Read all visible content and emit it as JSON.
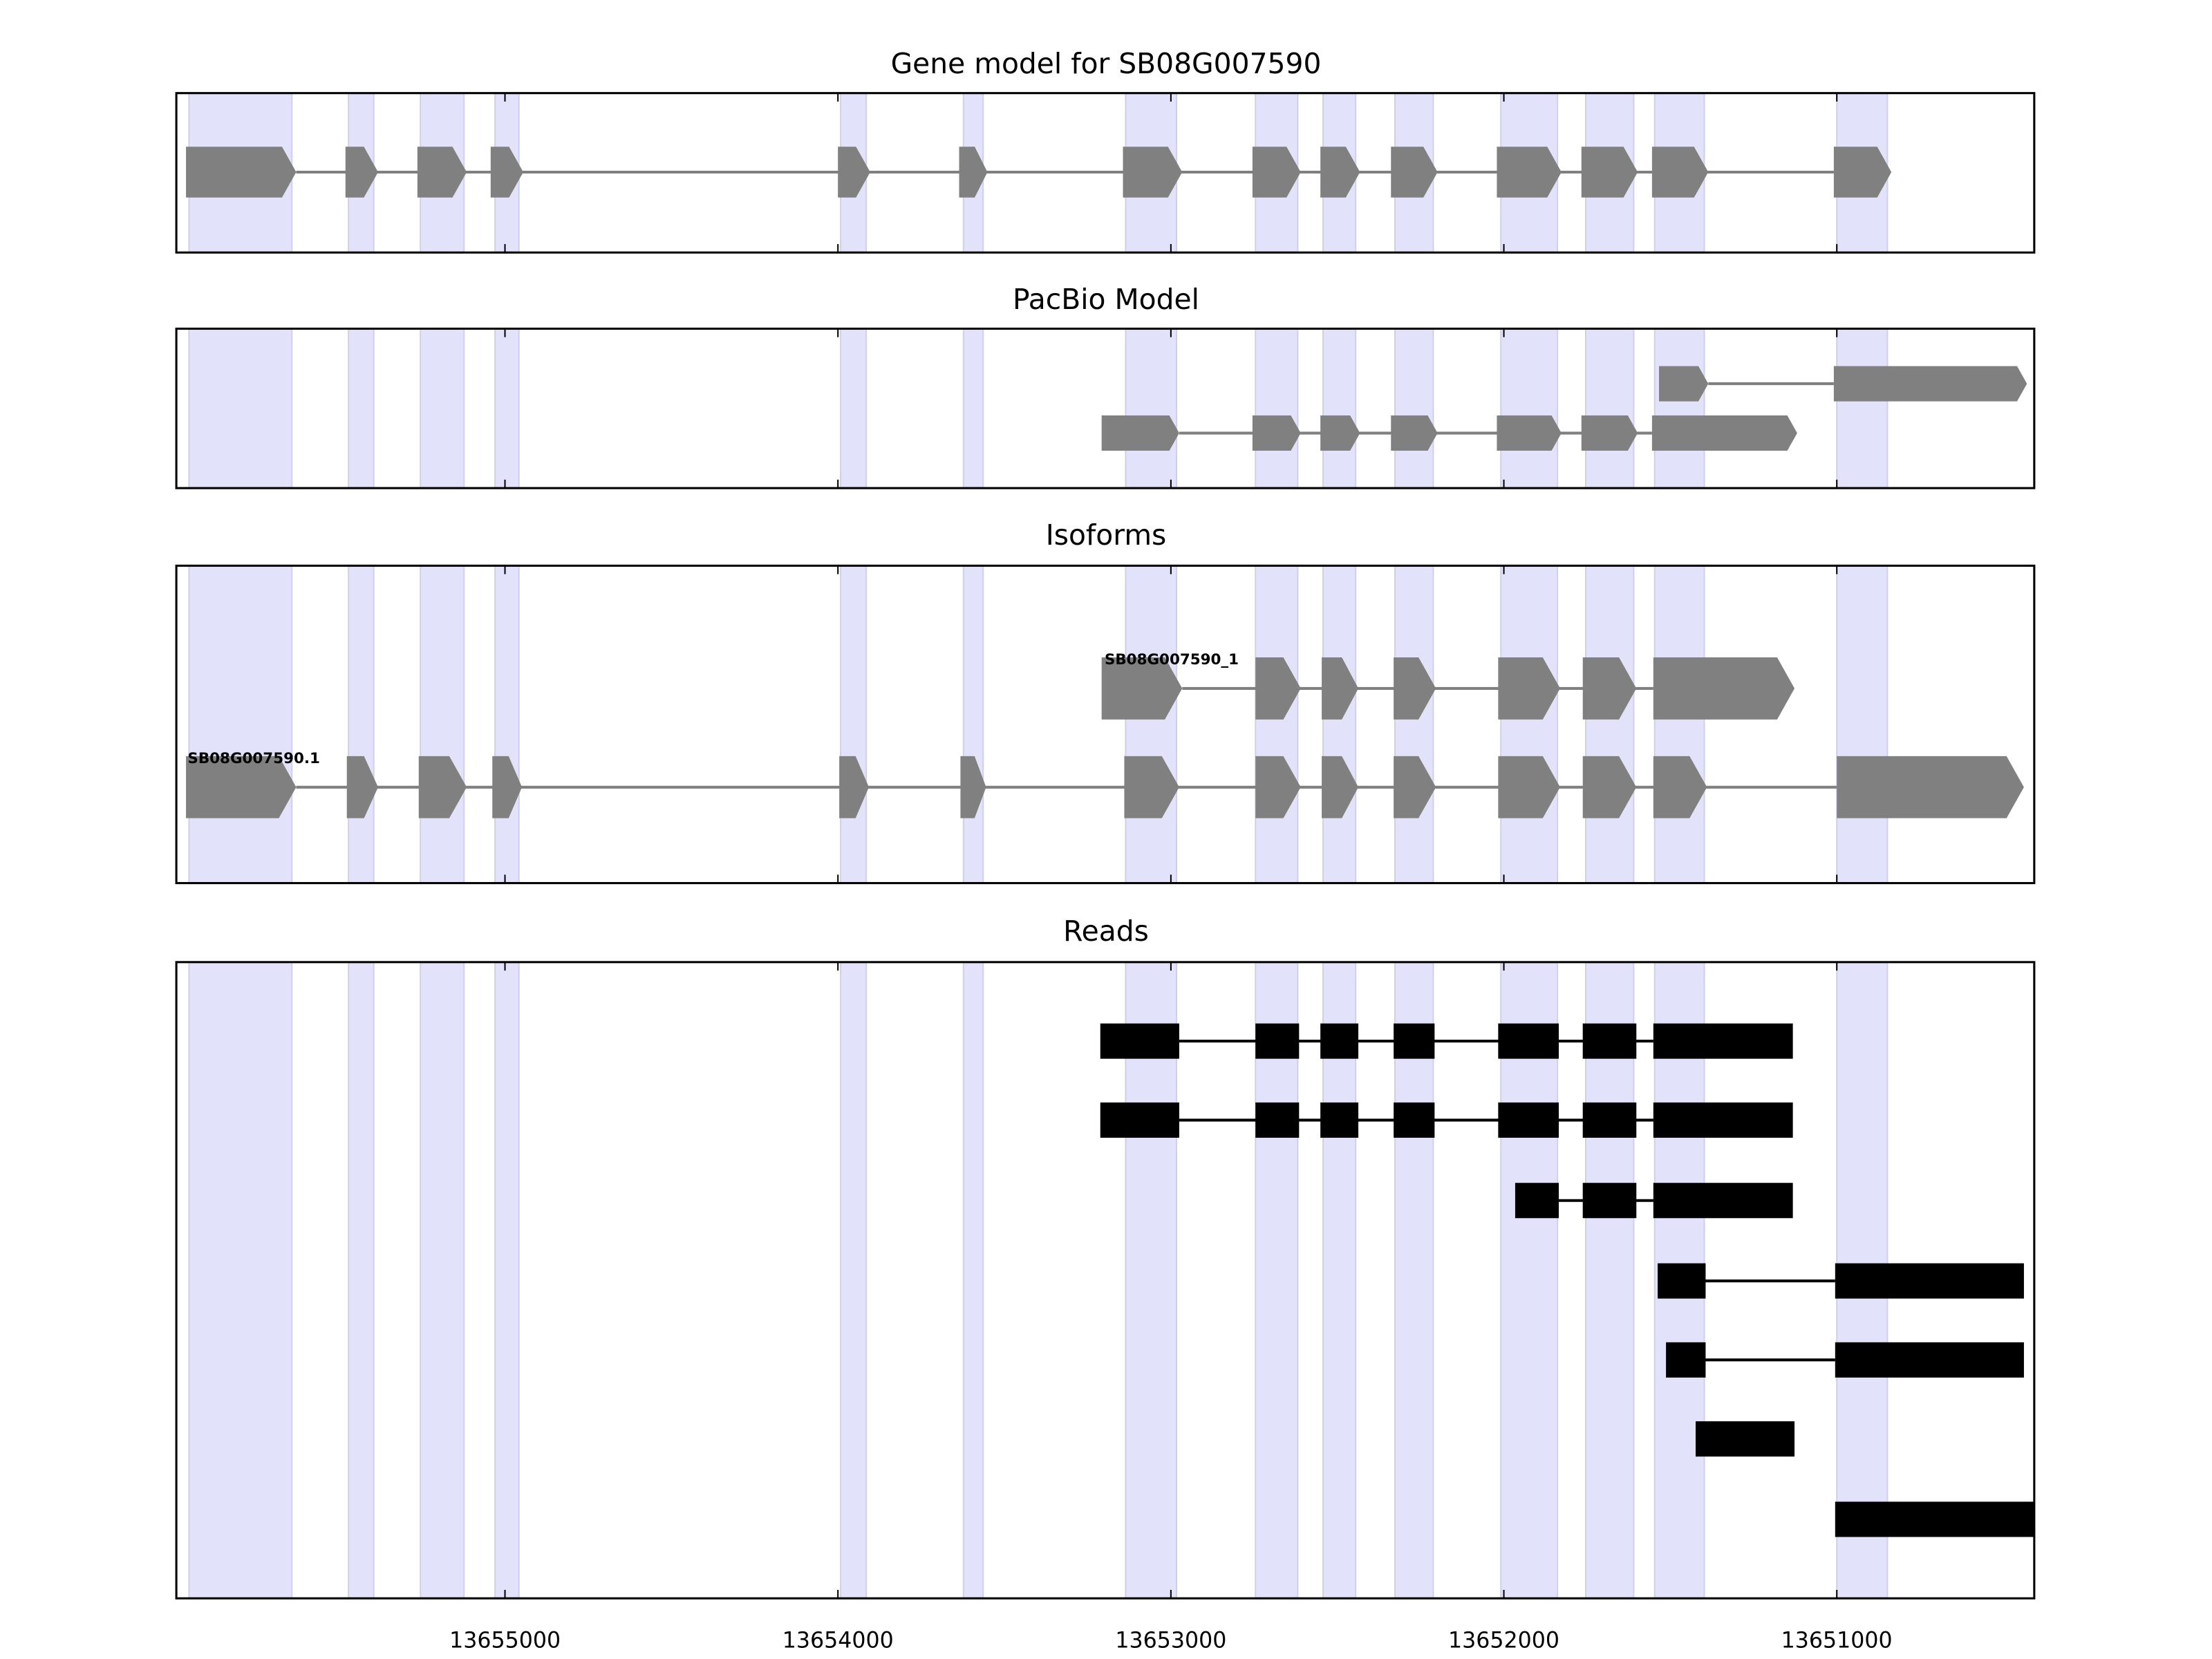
{
  "chart_data": {
    "type": "gene-track",
    "xlim": [
      13655987,
      13650407
    ],
    "x_ticks": [
      13655000,
      13654000,
      13653000,
      13652000,
      13651000
    ],
    "x_tick_labels": [
      "13655000",
      "13654000",
      "13653000",
      "13652000",
      "13651000"
    ],
    "colors": {
      "exon": "#808080",
      "intron": "#808080",
      "read": "#000000",
      "shade": "#e2e2fb"
    },
    "shaded_regions": [
      [
        13655949,
        13655640
      ],
      [
        13655470,
        13655394
      ],
      [
        13655254,
        13655123
      ],
      [
        13655030,
        13654958
      ],
      [
        13653992,
        13653915
      ],
      [
        13653623,
        13653564
      ],
      [
        13653136,
        13652983
      ],
      [
        13652746,
        13652619
      ],
      [
        13652543,
        13652445
      ],
      [
        13652327,
        13652212
      ],
      [
        13652009,
        13651839
      ],
      [
        13651754,
        13651610
      ],
      [
        13651547,
        13651398
      ],
      [
        13651000,
        13650848
      ]
    ],
    "panels": [
      {
        "title": "Gene model for SB08G007590",
        "kind": "arrows",
        "tracks": [
          {
            "label": "",
            "exons": [
              [
                13655958,
                13655627
              ],
              [
                13655479,
                13655381
              ],
              [
                13655263,
                13655115
              ],
              [
                13655043,
                13654945
              ],
              [
                13654000,
                13653903
              ],
              [
                13653636,
                13653551
              ],
              [
                13653144,
                13652966
              ],
              [
                13652755,
                13652610
              ],
              [
                13652551,
                13652432
              ],
              [
                13652339,
                13652199
              ],
              [
                13652021,
                13651827
              ],
              [
                13651767,
                13651598
              ],
              [
                13651555,
                13651386
              ],
              [
                13651009,
                13650836
              ]
            ]
          }
        ]
      },
      {
        "title": "PacBio Model",
        "kind": "arrows",
        "tracks": [
          {
            "label": "",
            "exons": [
              [
                13651534,
                13651386
              ],
              [
                13651009,
                13650429
              ]
            ]
          },
          {
            "label": "",
            "exons": [
              [
                13653208,
                13652975
              ],
              [
                13652755,
                13652610
              ],
              [
                13652551,
                13652432
              ],
              [
                13652339,
                13652199
              ],
              [
                13652021,
                13651827
              ],
              [
                13651767,
                13651598
              ],
              [
                13651555,
                13651119
              ]
            ]
          }
        ]
      },
      {
        "title": "Isoforms",
        "kind": "arrows",
        "tracks": [
          {
            "label": "SB08G007590_1",
            "exons": [
              [
                13653208,
                13652966
              ],
              [
                13652746,
                13652610
              ],
              [
                13652547,
                13652437
              ],
              [
                13652331,
                13652204
              ],
              [
                13652017,
                13651831
              ],
              [
                13651763,
                13651602
              ],
              [
                13651551,
                13651127
              ]
            ]
          },
          {
            "label": "SB08G007590.1",
            "exons": [
              [
                13655958,
                13655627
              ],
              [
                13655475,
                13655381
              ],
              [
                13655259,
                13655115
              ],
              [
                13655038,
                13654949
              ],
              [
                13653996,
                13653907
              ],
              [
                13653632,
                13653555
              ],
              [
                13653140,
                13652975
              ],
              [
                13652746,
                13652610
              ],
              [
                13652547,
                13652437
              ],
              [
                13652331,
                13652204
              ],
              [
                13652017,
                13651831
              ],
              [
                13651763,
                13651602
              ],
              [
                13651551,
                13651390
              ],
              [
                13651000,
                13650438
              ]
            ]
          }
        ]
      },
      {
        "title": "Reads",
        "kind": "rects",
        "tracks": [
          {
            "label": "",
            "exons": [
              [
                13653212,
                13652975
              ],
              [
                13652746,
                13652615
              ],
              [
                13652551,
                13652437
              ],
              [
                13652331,
                13652208
              ],
              [
                13652017,
                13651835
              ],
              [
                13651763,
                13651602
              ],
              [
                13651551,
                13651132
              ]
            ]
          },
          {
            "label": "",
            "exons": [
              [
                13653212,
                13652975
              ],
              [
                13652746,
                13652615
              ],
              [
                13652551,
                13652437
              ],
              [
                13652331,
                13652208
              ],
              [
                13652017,
                13651835
              ],
              [
                13651763,
                13651602
              ],
              [
                13651551,
                13651132
              ]
            ]
          },
          {
            "label": "",
            "exons": [
              [
                13651966,
                13651835
              ],
              [
                13651763,
                13651602
              ],
              [
                13651551,
                13651132
              ]
            ]
          },
          {
            "label": "",
            "exons": [
              [
                13651538,
                13651394
              ],
              [
                13651005,
                13650438
              ]
            ]
          },
          {
            "label": "",
            "exons": [
              [
                13651513,
                13651394
              ],
              [
                13651005,
                13650438
              ]
            ]
          },
          {
            "label": "",
            "exons": [
              [
                13651424,
                13651127
              ]
            ]
          },
          {
            "label": "",
            "exons": [
              [
                13651005,
                13650407
              ]
            ]
          }
        ]
      }
    ]
  }
}
